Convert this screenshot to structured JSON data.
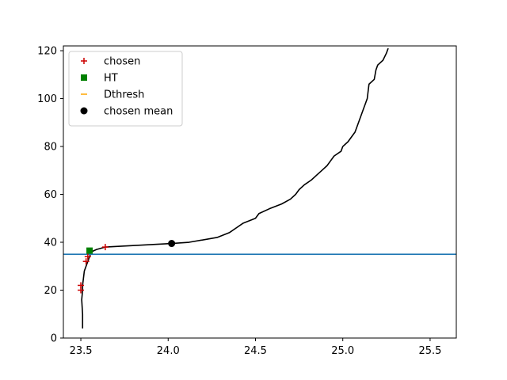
{
  "chart_data": {
    "type": "line",
    "xlim": [
      23.4,
      25.65
    ],
    "ylim": [
      0,
      122
    ],
    "xticks": [
      "23.5",
      "24.0",
      "24.5",
      "25.0",
      "25.5"
    ],
    "yticks": [
      "0",
      "20",
      "40",
      "60",
      "80",
      "100",
      "120"
    ],
    "grid": false,
    "legend_position": "top-left",
    "profile": {
      "color": "#000000",
      "x": [
        23.51,
        23.51,
        23.505,
        23.51,
        23.51,
        23.515,
        23.52,
        23.53,
        23.54,
        23.545,
        23.55,
        23.56,
        23.59,
        23.64,
        24.02,
        24.12,
        24.28,
        24.35,
        24.39,
        24.43,
        24.5,
        24.52,
        24.58,
        24.65,
        24.7,
        24.73,
        24.75,
        24.78,
        24.82,
        24.85,
        24.88,
        24.91,
        24.93,
        24.95,
        24.99,
        25.0,
        25.03,
        25.07,
        25.08,
        25.1,
        25.12,
        25.13,
        25.14,
        25.15,
        25.18,
        25.19,
        25.2,
        25.23,
        25.25,
        25.26
      ],
      "y": [
        4,
        10,
        16,
        20,
        22,
        25,
        28,
        30,
        32,
        33,
        34,
        36,
        37,
        38,
        39.5,
        40,
        42,
        44,
        46,
        48,
        50,
        52,
        54,
        56,
        58,
        60,
        62,
        64,
        66,
        68,
        70,
        72,
        74,
        76,
        78,
        80,
        82,
        86,
        88,
        92,
        96,
        98,
        100,
        106,
        108,
        112,
        114,
        116,
        119,
        121
      ]
    },
    "series": [
      {
        "name": "chosen",
        "marker": "plus",
        "color": "#cc0000",
        "x": [
          23.5,
          23.5,
          23.53,
          23.54,
          23.64
        ],
        "y": [
          20,
          22,
          32,
          34,
          38
        ]
      },
      {
        "name": "HT",
        "marker": "square",
        "color": "#008000",
        "x": [
          23.55
        ],
        "y": [
          36.5
        ]
      },
      {
        "name": "Dthresh",
        "marker": "hline",
        "color": "#1f77b4",
        "y": 35
      },
      {
        "name": "chosen mean",
        "marker": "circle",
        "color": "#000000",
        "x": [
          24.02
        ],
        "y": [
          39.5
        ]
      }
    ],
    "legend": [
      {
        "label": "chosen",
        "marker": "plus",
        "color": "#cc0000"
      },
      {
        "label": "HT",
        "marker": "square",
        "color": "#008000"
      },
      {
        "label": "Dthresh",
        "marker": "dash",
        "color": "#ffa500"
      },
      {
        "label": "chosen mean",
        "marker": "circle",
        "color": "#000000"
      }
    ]
  }
}
